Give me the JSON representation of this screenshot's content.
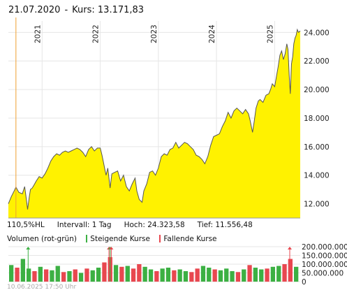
{
  "header": {
    "date": "21.07.2020",
    "separator": "-",
    "kurs_label": "Kurs:",
    "kurs_value": "13.171,83"
  },
  "colors": {
    "area_fill": "#fff200",
    "line": "#555555",
    "marker_line": "#f0a030",
    "vol_up": "#3cb043",
    "vol_down": "#e8474f",
    "grid": "#e6e6e6"
  },
  "stats": {
    "range": "110,5%HL",
    "interval": "Intervall: 1 Tag",
    "high": "Hoch: 24.323,58",
    "low": "Tief: 11.556,48"
  },
  "volume_legend": {
    "title": "Volumen (rot-grün)",
    "up": "Steigende Kurse",
    "down": "Fallende Kurse"
  },
  "footer": {
    "timestamp": "10.06.2025 17:50 Uhr"
  },
  "chart_data": [
    {
      "type": "area",
      "x_unit": "year",
      "ylim": [
        11000,
        24800
      ],
      "xlim": [
        2020.42,
        2025.44
      ],
      "y_ticks": [
        "12.000",
        "14.000",
        "16.000",
        "18.000",
        "20.000",
        "22.000",
        "24.000"
      ],
      "y_tick_values": [
        12000,
        14000,
        16000,
        18000,
        20000,
        22000,
        24000
      ],
      "x_ticks": [
        "2021",
        "2022",
        "2023",
        "2024",
        "2025"
      ],
      "x_tick_values": [
        2021.0,
        2022.0,
        2023.0,
        2024.0,
        2025.0
      ],
      "marker_x": 2020.55,
      "x": [
        2020.42,
        2020.47,
        2020.52,
        2020.55,
        2020.6,
        2020.66,
        2020.7,
        2020.73,
        2020.75,
        2020.78,
        2020.8,
        2020.83,
        2020.86,
        2020.9,
        2020.95,
        2021.0,
        2021.05,
        2021.1,
        2021.15,
        2021.2,
        2021.25,
        2021.3,
        2021.35,
        2021.4,
        2021.45,
        2021.5,
        2021.55,
        2021.6,
        2021.65,
        2021.7,
        2021.75,
        2021.8,
        2021.85,
        2021.9,
        2021.95,
        2022.0,
        2022.03,
        2022.06,
        2022.08,
        2022.1,
        2022.13,
        2022.17,
        2022.2,
        2022.25,
        2022.3,
        2022.35,
        2022.4,
        2022.45,
        2022.5,
        2022.55,
        2022.6,
        2022.63,
        2022.67,
        2022.72,
        2022.75,
        2022.8,
        2022.85,
        2022.9,
        2022.95,
        2023.0,
        2023.05,
        2023.1,
        2023.15,
        2023.2,
        2023.25,
        2023.3,
        2023.35,
        2023.4,
        2023.45,
        2023.5,
        2023.55,
        2023.6,
        2023.65,
        2023.7,
        2023.75,
        2023.8,
        2023.85,
        2023.9,
        2023.95,
        2024.0,
        2024.05,
        2024.1,
        2024.15,
        2024.2,
        2024.25,
        2024.3,
        2024.35,
        2024.4,
        2024.45,
        2024.5,
        2024.55,
        2024.58,
        2024.62,
        2024.65,
        2024.68,
        2024.72,
        2024.75,
        2024.8,
        2024.85,
        2024.9,
        2024.93,
        2024.96,
        2025.0,
        2025.03,
        2025.06,
        2025.09,
        2025.12,
        2025.15,
        2025.18,
        2025.21,
        2025.23,
        2025.25,
        2025.27,
        2025.29,
        2025.31,
        2025.33,
        2025.35,
        2025.37,
        2025.39,
        2025.41,
        2025.44
      ],
      "y": [
        12000,
        12500,
        12900,
        13170,
        12800,
        12700,
        13200,
        12300,
        11600,
        12500,
        13000,
        13100,
        13300,
        13600,
        13900,
        13800,
        14100,
        14500,
        15000,
        15300,
        15500,
        15400,
        15600,
        15700,
        15600,
        15700,
        15800,
        15900,
        15800,
        15600,
        15300,
        15800,
        16000,
        15700,
        15900,
        15900,
        15400,
        14800,
        14400,
        14000,
        14500,
        13100,
        14100,
        14200,
        14300,
        13600,
        14000,
        13200,
        12900,
        13400,
        13800,
        12900,
        12300,
        12100,
        12900,
        13400,
        14200,
        14300,
        14000,
        14500,
        15300,
        15500,
        15400,
        15800,
        15900,
        16300,
        15900,
        16100,
        16300,
        16200,
        16000,
        15800,
        15400,
        15300,
        15100,
        14800,
        15300,
        16100,
        16700,
        16800,
        16900,
        17400,
        17800,
        18400,
        18000,
        18500,
        18700,
        18500,
        18300,
        18600,
        18300,
        17800,
        17000,
        17800,
        18700,
        19200,
        19300,
        19100,
        19600,
        19700,
        20000,
        20400,
        20200,
        20900,
        21600,
        22400,
        22700,
        22100,
        22500,
        23200,
        22800,
        21000,
        19700,
        21800,
        22300,
        23200,
        23600,
        23800,
        24200,
        24000,
        24100
      ]
    },
    {
      "type": "bar",
      "x_unit": "year",
      "ylim": [
        0,
        200000000
      ],
      "xlim": [
        2020.42,
        2025.44
      ],
      "y_ticks": [
        "200.000.000",
        "150.000.000",
        "100.000.000",
        "50.000.000",
        "0"
      ],
      "y_tick_values": [
        200000000,
        150000000,
        100000000,
        50000000,
        0
      ],
      "x": [
        2020.47,
        2020.57,
        2020.67,
        2020.77,
        2020.87,
        2020.97,
        2021.07,
        2021.17,
        2021.27,
        2021.37,
        2021.47,
        2021.57,
        2021.67,
        2021.77,
        2021.87,
        2021.97,
        2022.07,
        2022.17,
        2022.27,
        2022.37,
        2022.47,
        2022.57,
        2022.67,
        2022.77,
        2022.87,
        2022.97,
        2023.07,
        2023.17,
        2023.27,
        2023.37,
        2023.47,
        2023.57,
        2023.67,
        2023.77,
        2023.87,
        2023.97,
        2024.07,
        2024.17,
        2024.27,
        2024.37,
        2024.47,
        2024.57,
        2024.67,
        2024.77,
        2024.87,
        2024.97,
        2025.07,
        2025.17,
        2025.27,
        2025.37
      ],
      "values": [
        95000000,
        80000000,
        130000000,
        75000000,
        60000000,
        85000000,
        70000000,
        65000000,
        90000000,
        55000000,
        60000000,
        70000000,
        50000000,
        75000000,
        65000000,
        80000000,
        110000000,
        140000000,
        95000000,
        85000000,
        90000000,
        75000000,
        100000000,
        85000000,
        70000000,
        60000000,
        75000000,
        80000000,
        65000000,
        70000000,
        60000000,
        55000000,
        75000000,
        90000000,
        80000000,
        70000000,
        65000000,
        75000000,
        60000000,
        55000000,
        70000000,
        95000000,
        80000000,
        70000000,
        75000000,
        85000000,
        90000000,
        100000000,
        130000000,
        85000000
      ],
      "direction": [
        "up",
        "down",
        "up",
        "up",
        "down",
        "up",
        "down",
        "up",
        "up",
        "down",
        "up",
        "down",
        "up",
        "down",
        "up",
        "up",
        "down",
        "down",
        "up",
        "down",
        "up",
        "down",
        "down",
        "up",
        "up",
        "down",
        "up",
        "up",
        "down",
        "up",
        "up",
        "down",
        "down",
        "up",
        "up",
        "down",
        "up",
        "up",
        "up",
        "down",
        "up",
        "down",
        "up",
        "up",
        "down",
        "up",
        "up",
        "down",
        "down",
        "up"
      ],
      "high_markers": [
        {
          "x": 2020.76,
          "direction": "up"
        },
        {
          "x": 2022.15,
          "direction": "down"
        },
        {
          "x": 2022.17,
          "direction": "up"
        },
        {
          "x": 2022.19,
          "direction": "down"
        },
        {
          "x": 2025.26,
          "direction": "down"
        }
      ]
    }
  ]
}
